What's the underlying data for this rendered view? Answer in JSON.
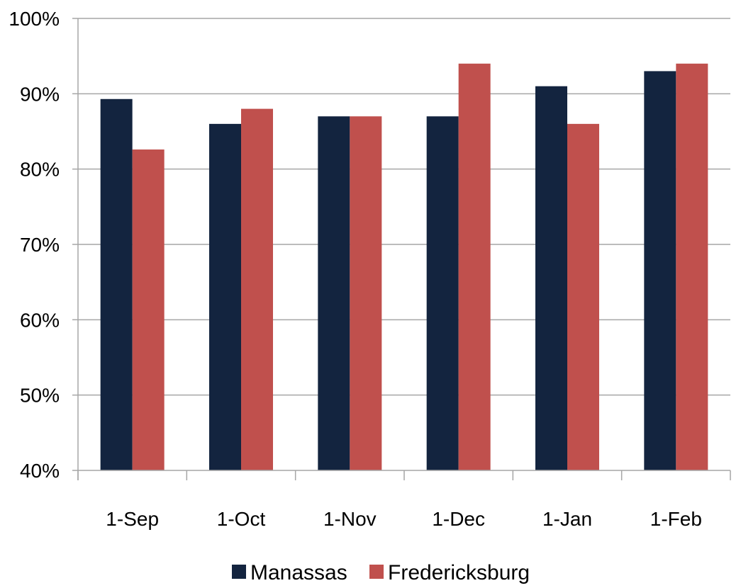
{
  "chart_data": {
    "type": "bar",
    "title": "",
    "xlabel": "",
    "ylabel": "",
    "categories": [
      "1-Sep",
      "1-Oct",
      "1-Nov",
      "1-Dec",
      "1-Jan",
      "1-Feb"
    ],
    "series": [
      {
        "name": "Manassas",
        "color": "#13243f",
        "values": [
          89.3,
          86,
          87,
          87,
          91,
          93
        ]
      },
      {
        "name": "Fredericksburg",
        "color": "#c0504d",
        "values": [
          82.6,
          88,
          87,
          94,
          86,
          94
        ]
      }
    ],
    "ylim": [
      40,
      100
    ],
    "yticks": [
      40,
      50,
      60,
      70,
      80,
      90,
      100
    ],
    "ytick_labels": [
      "40%",
      "50%",
      "60%",
      "70%",
      "80%",
      "90%",
      "100%"
    ],
    "grid": true,
    "legend_position": "bottom"
  }
}
